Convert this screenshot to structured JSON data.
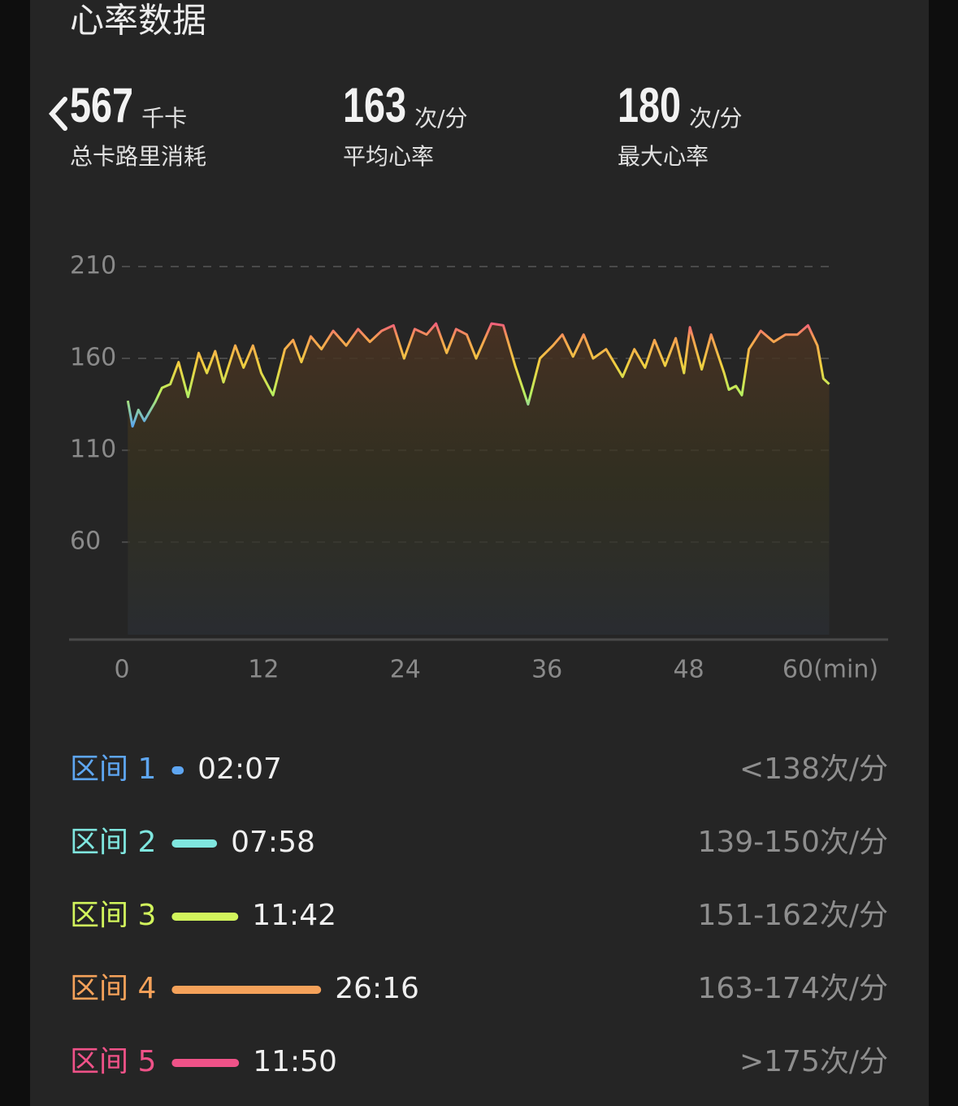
{
  "header": {
    "title": "心率数据"
  },
  "stats": [
    {
      "value": "567",
      "unit": "千卡",
      "label": "总卡路里消耗"
    },
    {
      "value": "163",
      "unit": "次/分",
      "label": "平均心率"
    },
    {
      "value": "180",
      "unit": "次/分",
      "label": "最大心率"
    }
  ],
  "chart_data": {
    "type": "line",
    "x": [
      0.5,
      0.9,
      1.4,
      1.9,
      2.8,
      3.4,
      4.1,
      4.8,
      5.6,
      6.5,
      7.2,
      7.9,
      8.6,
      9.6,
      10.3,
      11.1,
      11.8,
      12.8,
      13.8,
      14.5,
      15.2,
      16.0,
      16.9,
      17.9,
      19.0,
      20.0,
      21.0,
      22.0,
      23.0,
      23.9,
      24.8,
      25.8,
      26.6,
      27.5,
      28.3,
      29.2,
      30.0,
      31.3,
      32.3,
      33.3,
      34.4,
      35.4,
      36.5,
      37.3,
      38.2,
      39.1,
      39.9,
      41.0,
      42.4,
      43.4,
      44.3,
      45.1,
      46.0,
      46.9,
      47.6,
      48.1,
      49.1,
      49.9,
      51.0,
      51.4,
      52.0,
      52.5,
      53.1,
      54.1,
      55.2,
      56.2,
      57.2,
      58.1,
      58.9,
      59.4,
      59.9
    ],
    "series": [
      {
        "values": [
          137,
          123,
          132,
          126,
          136,
          144,
          146,
          158,
          139,
          163,
          152,
          164,
          147,
          167,
          155,
          167,
          152,
          140,
          165,
          170,
          158,
          172,
          165,
          175,
          167,
          176,
          169,
          175,
          178,
          160,
          176,
          173,
          179,
          163,
          176,
          173,
          160,
          179,
          178,
          156,
          135,
          160,
          167,
          173,
          161,
          173,
          160,
          165,
          150,
          165,
          155,
          170,
          156,
          171,
          152,
          177,
          154,
          173,
          152,
          143,
          145,
          140,
          165,
          175,
          169,
          173,
          173,
          178,
          167,
          149,
          146
        ]
      }
    ],
    "xlim": [
      0,
      60
    ],
    "ylim": [
      7,
      210
    ],
    "xticks": [
      0,
      12,
      24,
      36,
      48,
      {
        "value": 60,
        "label": "60(min)"
      }
    ],
    "yticks": [
      210,
      160,
      110,
      60
    ],
    "grid": true
  },
  "zones": [
    {
      "name": "区间 1",
      "time": "02:07",
      "range": "<138次/分",
      "color": "#5ea6f2"
    },
    {
      "name": "区间 2",
      "time": "07:58",
      "range": "139-150次/分",
      "color": "#7fe6df"
    },
    {
      "name": "区间 3",
      "time": "11:42",
      "range": "151-162次/分",
      "color": "#d2f55c"
    },
    {
      "name": "区间 4",
      "time": "26:16",
      "range": "163-174次/分",
      "color": "#f5a25a"
    },
    {
      "name": "区间 5",
      "time": "11:50",
      "range": ">175次/分",
      "color": "#ef5288"
    }
  ]
}
